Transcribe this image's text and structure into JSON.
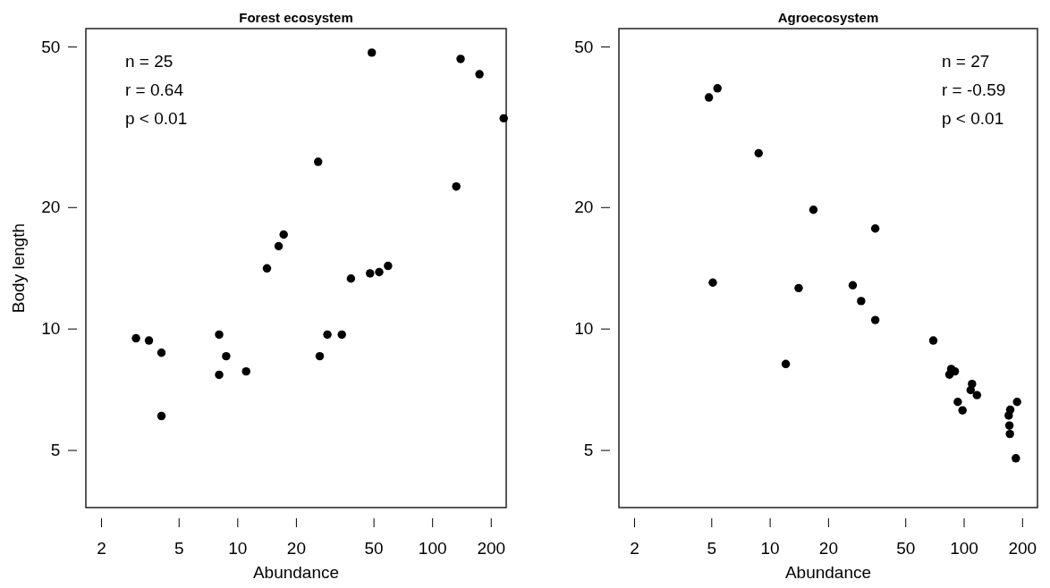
{
  "chart_data": [
    {
      "type": "scatter",
      "title": "Forest ecosystem",
      "xlabel": "Abundance",
      "ylabel": "Body length",
      "log": "xy",
      "grid": false,
      "marker": "circle",
      "xlim": [
        1.67,
        240
      ],
      "ylim": [
        3.6,
        55.4
      ],
      "xticks": [
        2,
        5,
        10,
        20,
        50,
        100,
        200
      ],
      "yticks": [
        5,
        10,
        20,
        50
      ],
      "annotations": [
        "n = 25",
        "r = 0.64",
        "p < 0.01"
      ],
      "series": [
        {
          "color": "#000000",
          "x": [
            49,
            140,
            175,
            233,
            26,
            133,
            17.3,
            16.3,
            14.2,
            38.3,
            48,
            53.5,
            59.4,
            3.02,
            3.52,
            4.08,
            4.08,
            8.07,
            8.77,
            8.07,
            11.1,
            26.5,
            29,
            34.4
          ],
          "values": [
            48.3,
            46.6,
            42.7,
            33.2,
            25.9,
            22.5,
            17.1,
            16,
            14.1,
            13.3,
            13.7,
            13.8,
            14.3,
            9.46,
            9.34,
            8.71,
            6.07,
            9.66,
            8.54,
            7.68,
            7.83,
            8.54,
            9.66,
            9.66
          ]
        }
      ]
    },
    {
      "type": "scatter",
      "title": "Agroecosystem",
      "xlabel": "Abundance",
      "log": "xy",
      "grid": false,
      "marker": "circle",
      "xlim": [
        1.67,
        240
      ],
      "ylim": [
        3.6,
        55.4
      ],
      "xticks": [
        2,
        5,
        10,
        20,
        50,
        100,
        200
      ],
      "yticks": [
        5,
        10,
        20,
        50
      ],
      "annotations": [
        "n = 27",
        "r = -0.59",
        "p < 0.01"
      ],
      "series": [
        {
          "color": "#000000",
          "x": [
            4.86,
            5.38,
            8.77,
            16.8,
            35,
            5.09,
            14.1,
            26.8,
            29.6,
            35,
            69.7,
            12.1,
            84.4,
            90,
            110.4,
            108.6,
            117,
            93.2,
            98.6,
            188.4,
            173.7,
            170.6,
            172,
            173,
            185.7,
            86.2
          ],
          "values": [
            37.4,
            39.4,
            27.2,
            19.7,
            17.7,
            13,
            12.6,
            12.8,
            11.7,
            10.5,
            9.34,
            8.17,
            7.69,
            7.83,
            7.29,
            7.04,
            6.84,
            6.58,
            6.27,
            6.58,
            6.29,
            6.09,
            5.75,
            5.48,
            4.77,
            7.94
          ]
        }
      ]
    }
  ]
}
